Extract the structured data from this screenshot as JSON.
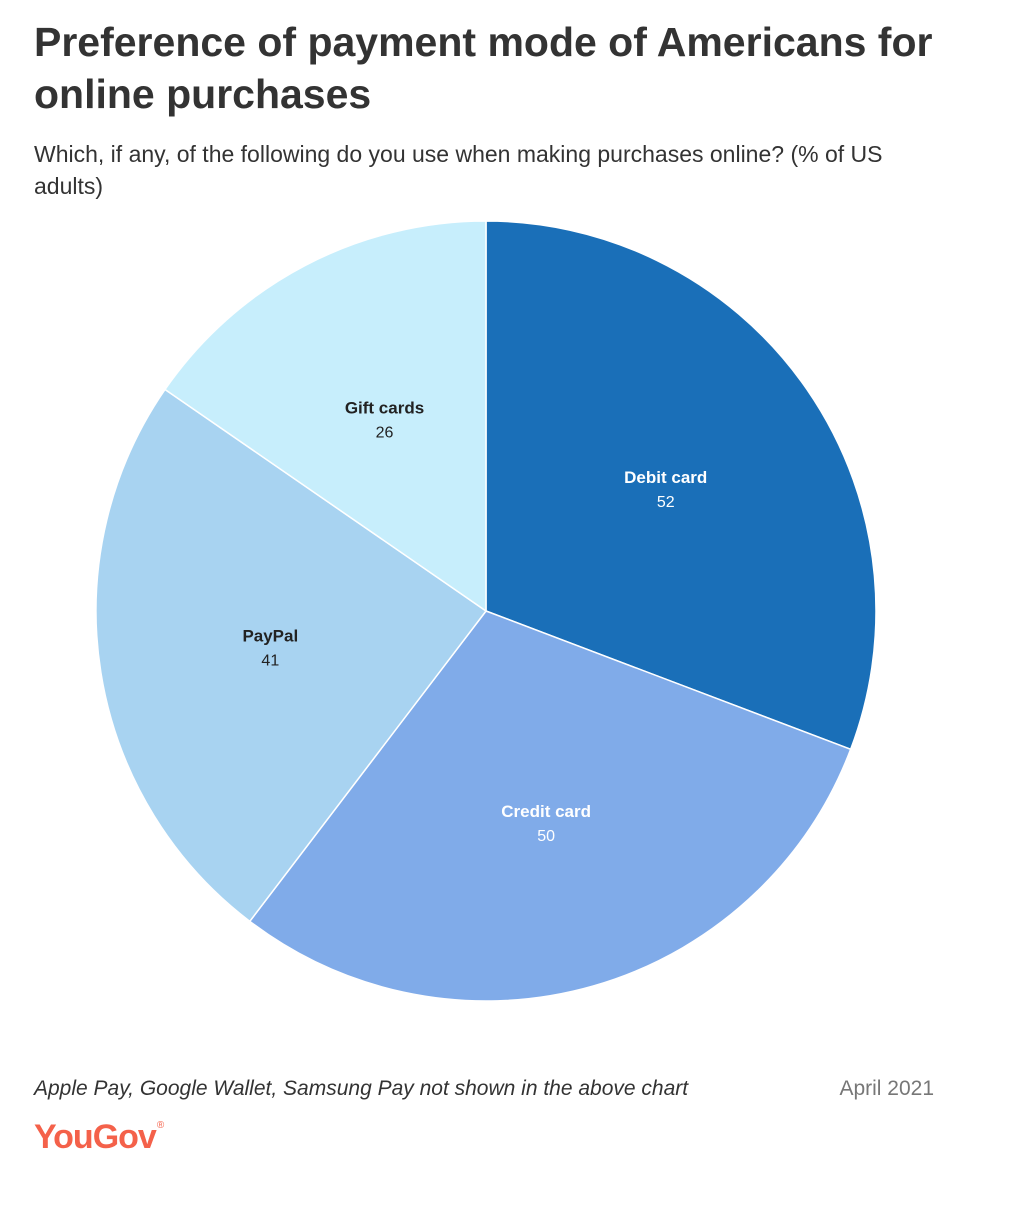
{
  "header": {
    "title": "Preference of payment mode of Americans for online purchases",
    "subtitle": "Which, if any, of the following do you use when making purchases online? (% of US adults)"
  },
  "chart_data": {
    "type": "pie",
    "title": "Preference of payment mode of Americans for online purchases",
    "subtitle": "Which, if any, of the following do you use when making purchases online? (% of US adults)",
    "start": "12 o'clock, clockwise",
    "slices": [
      {
        "label": "Debit card",
        "value": 52,
        "color": "#1a6fb8",
        "text_color": "#ffffff"
      },
      {
        "label": "Credit card",
        "value": 50,
        "color": "#80abe9",
        "text_color": "#ffffff"
      },
      {
        "label": "PayPal",
        "value": 41,
        "color": "#a8d3f1",
        "text_color": "#222222"
      },
      {
        "label": "Gift cards",
        "value": 26,
        "color": "#c7eefc",
        "text_color": "#222222"
      }
    ]
  },
  "footer": {
    "note": "Apple Pay, Google Wallet, Samsung Pay not shown in the above chart",
    "date": "April 2021",
    "logo_text": "YouGov",
    "logo_mark": "®",
    "logo_color": "#f4614a"
  }
}
